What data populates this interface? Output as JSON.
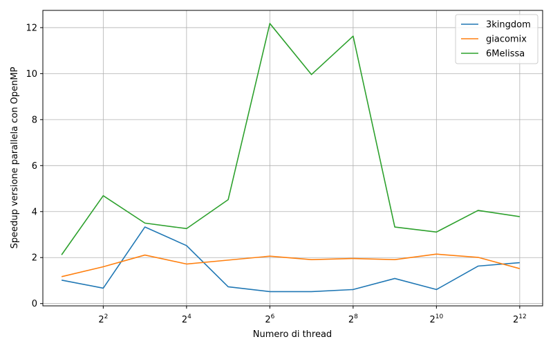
{
  "chart_data": {
    "type": "line",
    "xlabel": "Numero di thread",
    "ylabel": "Speedup versione parallela con OpenMP",
    "x_scale": "log2",
    "x": [
      2,
      4,
      8,
      16,
      32,
      64,
      128,
      256,
      512,
      1024,
      2048,
      4096
    ],
    "x_ticks": [
      {
        "exp": 2,
        "base": "2",
        "sup": "2"
      },
      {
        "exp": 4,
        "base": "2",
        "sup": "4"
      },
      {
        "exp": 6,
        "base": "2",
        "sup": "6"
      },
      {
        "exp": 8,
        "base": "2",
        "sup": "8"
      },
      {
        "exp": 10,
        "base": "2",
        "sup": "10"
      },
      {
        "exp": 12,
        "base": "2",
        "sup": "12"
      }
    ],
    "y_ticks": [
      0,
      2,
      4,
      6,
      8,
      10,
      12
    ],
    "ylim": [
      -0.1,
      12.75
    ],
    "xlim_exp": [
      0.55,
      12.55
    ],
    "grid": true,
    "legend_position": "top-right",
    "series": [
      {
        "name": "3kingdom",
        "color": "#1f77b4",
        "values": [
          1.02,
          0.67,
          3.33,
          2.52,
          0.73,
          0.52,
          0.52,
          0.61,
          1.09,
          0.61,
          1.63,
          1.78
        ]
      },
      {
        "name": "giacomix",
        "color": "#ff7f0e",
        "values": [
          1.17,
          1.6,
          2.11,
          1.72,
          1.89,
          2.06,
          1.91,
          1.96,
          1.91,
          2.15,
          2.01,
          1.52
        ]
      },
      {
        "name": "6Melissa",
        "color": "#2ca02c",
        "values": [
          2.12,
          4.69,
          3.5,
          3.26,
          4.52,
          12.18,
          9.96,
          11.63,
          3.33,
          3.11,
          4.05,
          3.78
        ]
      }
    ]
  }
}
